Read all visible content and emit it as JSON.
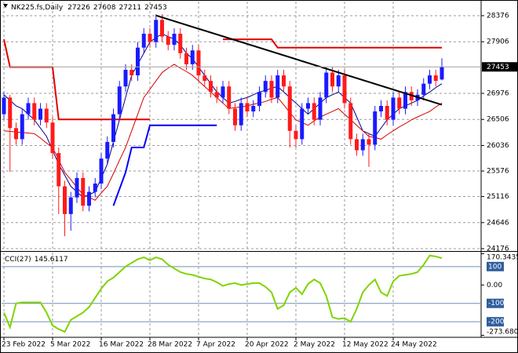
{
  "chart_data": [
    {
      "type": "candlestick",
      "title": "NK225.fs,Daily",
      "categories": [
        "23 Feb 2022",
        null,
        null,
        null,
        null,
        null,
        null,
        null,
        "5 Mar 2022",
        null,
        null,
        null,
        null,
        null,
        null,
        null,
        "16 Mar 2022",
        null,
        null,
        null,
        null,
        null,
        null,
        null,
        "28 Mar 2022",
        null,
        null,
        null,
        null,
        null,
        null,
        null,
        "7 Apr 2022",
        null,
        null,
        null,
        null,
        null,
        null,
        null,
        "20 Apr 2022",
        null,
        null,
        null,
        null,
        null,
        null,
        null,
        "2 May 2022",
        null,
        null,
        null,
        null,
        null,
        null,
        null,
        "12 May 2022",
        null,
        null,
        null,
        null,
        null,
        null,
        null,
        "24 May 2022",
        null,
        null,
        null,
        null,
        null,
        null,
        null,
        null
      ],
      "open": [
        26600,
        26900,
        26350,
        26150,
        26600,
        26800,
        26500,
        26700,
        26450,
        25900,
        25300,
        24800,
        25100,
        25450,
        24950,
        25200,
        25350,
        25800,
        26100,
        26600,
        27100,
        27400,
        27300,
        27800,
        28050,
        27900,
        28300,
        28000,
        27850,
        28050,
        27700,
        27500,
        27750,
        27300,
        27200,
        27000,
        26900,
        27100,
        26700,
        26400,
        26800,
        26650,
        26750,
        27000,
        27200,
        26900,
        27300,
        27100,
        26300,
        26150,
        26700,
        26800,
        26500,
        26900,
        27350,
        27100,
        27300,
        26800,
        26150,
        25950,
        26150,
        26050,
        26650,
        26750,
        26500,
        26900,
        26700,
        27000,
        26850,
        26950,
        27150,
        27300,
        27226
      ],
      "high": [
        27000,
        26950,
        26450,
        26700,
        26900,
        26900,
        26800,
        26800,
        26550,
        26000,
        25400,
        25200,
        25550,
        25550,
        25300,
        25450,
        25900,
        26200,
        26700,
        27200,
        27500,
        27500,
        27900,
        28150,
        28150,
        28400,
        28400,
        28100,
        28150,
        28150,
        27800,
        27850,
        27850,
        27400,
        27300,
        27100,
        27200,
        27200,
        26800,
        26900,
        26900,
        26850,
        27100,
        27300,
        27300,
        27400,
        27400,
        27200,
        26400,
        26800,
        26900,
        26900,
        27000,
        27450,
        27450,
        27400,
        27400,
        26900,
        26250,
        26250,
        26250,
        26750,
        26850,
        26850,
        27000,
        27000,
        27100,
        27100,
        27050,
        27250,
        27400,
        27400,
        27608
      ],
      "low": [
        26500,
        25560,
        26050,
        26050,
        26500,
        26400,
        26400,
        26350,
        25800,
        24800,
        24400,
        24500,
        25000,
        24850,
        24850,
        25100,
        25250,
        25700,
        26000,
        26500,
        27000,
        27200,
        27200,
        27700,
        27800,
        27800,
        27900,
        27750,
        27750,
        27600,
        27400,
        27400,
        27200,
        27100,
        26900,
        26800,
        26800,
        26600,
        26300,
        26300,
        26550,
        26550,
        26650,
        26900,
        26800,
        26800,
        27000,
        26000,
        26000,
        26050,
        26600,
        26400,
        26400,
        26800,
        27000,
        27000,
        26700,
        26050,
        25850,
        25850,
        25650,
        25950,
        26550,
        26400,
        26400,
        26600,
        26600,
        26750,
        26750,
        26850,
        27050,
        27100,
        27211
      ],
      "close": [
        26900,
        26350,
        26150,
        26600,
        26800,
        26500,
        26700,
        26450,
        25900,
        25300,
        24800,
        25100,
        25450,
        24950,
        25200,
        25350,
        25800,
        26100,
        26600,
        27100,
        27400,
        27300,
        27800,
        28050,
        27900,
        28300,
        28000,
        27850,
        28050,
        27700,
        27500,
        27750,
        27300,
        27200,
        27000,
        26900,
        27100,
        26700,
        26400,
        26800,
        26650,
        26750,
        27000,
        27200,
        26900,
        27300,
        27100,
        26300,
        26150,
        26700,
        26800,
        26500,
        26900,
        27350,
        27100,
        27300,
        26800,
        26150,
        25950,
        26150,
        26050,
        26650,
        26750,
        26500,
        26900,
        26700,
        27000,
        26850,
        26950,
        27150,
        27300,
        27200,
        27453
      ],
      "up_color": "#1a1aff",
      "down_color": "#ff1a1a",
      "series": [
        {
          "color": "#00008b",
          "values": [
            26950,
            26850,
            26750,
            26700,
            26600,
            26500,
            26350,
            26200,
            25950,
            25700,
            25500,
            25300,
            25200,
            25100,
            25150,
            25200,
            25450,
            25700,
            26100,
            26500,
            26900,
            27300,
            27500,
            27700,
            27900,
            27980,
            28050,
            28000,
            27950,
            27850,
            27700,
            27600,
            27450,
            27300,
            27150,
            27000,
            26900,
            26800,
            26830,
            26870,
            26900,
            26950,
            27000,
            27030,
            27070,
            27100,
            27000,
            26900,
            26800,
            26700,
            26600,
            26700,
            26800,
            26900,
            26950,
            27000,
            26900,
            26800,
            26550,
            26300,
            26250,
            26200,
            26350,
            26500,
            26600,
            26700,
            26750,
            26800,
            26850,
            26930,
            27000,
            27080,
            27150
          ]
        },
        {
          "color": "#d40000",
          "values": [
            26300,
            26290,
            26280,
            26270,
            26260,
            26250,
            26170,
            26080,
            26000,
            25780,
            25550,
            25420,
            25280,
            25150,
            25100,
            25050,
            25180,
            25300,
            25530,
            25770,
            26000,
            26300,
            26600,
            26900,
            27050,
            27200,
            27350,
            27430,
            27500,
            27430,
            27370,
            27300,
            27200,
            27100,
            27000,
            26900,
            26800,
            26700,
            26720,
            26730,
            26750,
            26780,
            26800,
            26830,
            26870,
            26900,
            26770,
            26630,
            26500,
            26450,
            26400,
            26480,
            26550,
            26600,
            26650,
            26700,
            26600,
            26500,
            26400,
            26300,
            26200,
            26180,
            26150,
            26230,
            26300,
            26370,
            26430,
            26500,
            26550,
            26600,
            26650,
            26730,
            26800
          ]
        },
        {
          "color": "#e00000",
          "values": [
            27950,
            27450,
            27450,
            27450,
            27450,
            27450,
            27450,
            27450,
            27450,
            26506,
            26506,
            26506,
            26506,
            26506,
            26506,
            26506,
            26506,
            26506,
            26506,
            26506,
            26506,
            26506,
            26506,
            26506,
            26506,
            null,
            null,
            null,
            null,
            null,
            null,
            null,
            null,
            null,
            null,
            null,
            27950,
            27950,
            27950,
            27950,
            27950,
            27950,
            27950,
            27950,
            27950,
            27800,
            27800,
            27800,
            27800,
            27800,
            27800,
            27800,
            27800,
            27800,
            27800,
            27800,
            27800,
            27800,
            27800,
            27800,
            27800,
            27800,
            27800,
            27800,
            27800,
            27800,
            27800,
            27800,
            27800,
            27800,
            27800,
            27800,
            27800
          ]
        },
        {
          "color": "#0000ff",
          "values": [
            null,
            null,
            null,
            null,
            null,
            null,
            null,
            null,
            null,
            null,
            null,
            null,
            null,
            null,
            null,
            null,
            null,
            null,
            24950,
            25250,
            25550,
            26000,
            26000,
            26000,
            26400,
            26400,
            26400,
            26400,
            26400,
            26400,
            26400,
            26400,
            26400,
            26400,
            26400,
            26400,
            null,
            null,
            null,
            null,
            null,
            null,
            null,
            null,
            null,
            null,
            null,
            null,
            null,
            null,
            null,
            null,
            null,
            null,
            null,
            null,
            null,
            null,
            null,
            null,
            null,
            null,
            null,
            null,
            null,
            null,
            null,
            null,
            null,
            null,
            null,
            null,
            null
          ]
        }
      ],
      "trendline": {
        "color": "#000000",
        "points": [
          [
            25,
            28380
          ],
          [
            72,
            26770
          ]
        ]
      },
      "ylim": [
        24148,
        28616
      ],
      "yticks": [
        28376,
        27906,
        26976,
        26506,
        26036,
        25576,
        25116,
        24646,
        24176
      ],
      "grid": true
    },
    {
      "type": "line",
      "title": "CCI(27)",
      "color": "#7fd400",
      "values": [
        -150,
        -230,
        -100,
        -95,
        -95,
        -95,
        -95,
        -150,
        -220,
        -240,
        -255,
        -190,
        -170,
        -150,
        -120,
        -70,
        -20,
        20,
        40,
        70,
        100,
        120,
        140,
        150,
        135,
        150,
        140,
        110,
        90,
        70,
        60,
        55,
        45,
        35,
        30,
        15,
        -5,
        5,
        10,
        0,
        5,
        10,
        10,
        -10,
        -40,
        -130,
        -110,
        -40,
        -15,
        -50,
        5,
        30,
        10,
        -60,
        -175,
        -185,
        -180,
        -200,
        -130,
        -40,
        0,
        30,
        -40,
        -60,
        20,
        50,
        55,
        60,
        70,
        110,
        160,
        155,
        145.6117
      ],
      "ylim": [
        -276,
        176
      ],
      "yticks": [
        170.3435,
        {
          "value": 0,
          "label": "0.00"
        },
        -273.6801
      ],
      "levels": [
        100,
        -100,
        -200
      ]
    }
  ]
}
